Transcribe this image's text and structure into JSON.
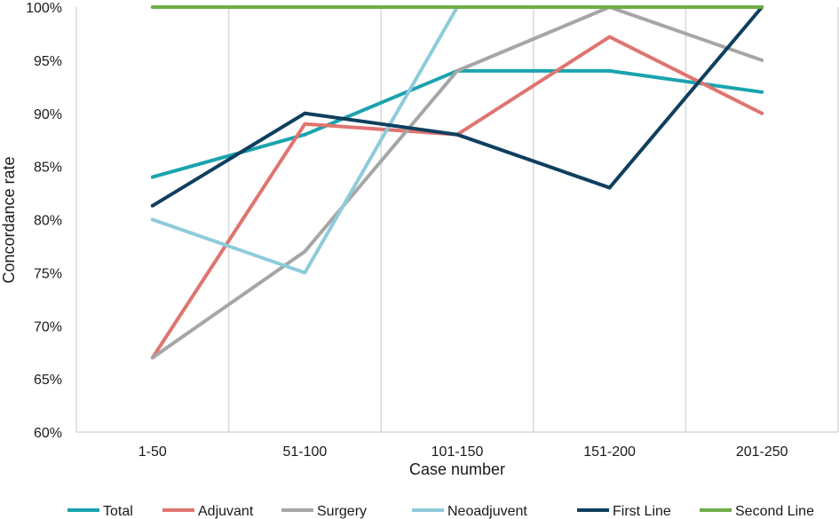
{
  "chart_data": {
    "type": "line",
    "title": "",
    "xlabel": "Case number",
    "ylabel": "Concordance rate",
    "ylim": [
      60,
      100
    ],
    "ytick_step": 5,
    "y_tick_labels": [
      "60%",
      "65%",
      "70%",
      "75%",
      "80%",
      "85%",
      "90%",
      "95%",
      "100%"
    ],
    "grid": "vertical",
    "legend_position": "bottom",
    "categories": [
      "1-50",
      "51-100",
      "101-150",
      "151-200",
      "201-250"
    ],
    "series": [
      {
        "name": "Total",
        "color": "#1AA3AE",
        "values": [
          84,
          88,
          94,
          94,
          92
        ]
      },
      {
        "name": "Adjuvant",
        "color": "#E07470",
        "values": [
          67,
          89,
          88,
          97.2,
          90
        ]
      },
      {
        "name": "Surgery",
        "color": "#A6A6A6",
        "values": [
          67,
          77,
          94,
          100,
          95
        ]
      },
      {
        "name": "Neoadjuvent",
        "color": "#8ECBDB",
        "values": [
          80,
          75,
          100,
          100,
          100
        ]
      },
      {
        "name": "First Line",
        "color": "#0E3F5E",
        "values": [
          81.3,
          90,
          88,
          83,
          100
        ]
      },
      {
        "name": "Second Line",
        "color": "#6FAD47",
        "values": [
          100,
          100,
          100,
          100,
          100
        ]
      }
    ]
  }
}
